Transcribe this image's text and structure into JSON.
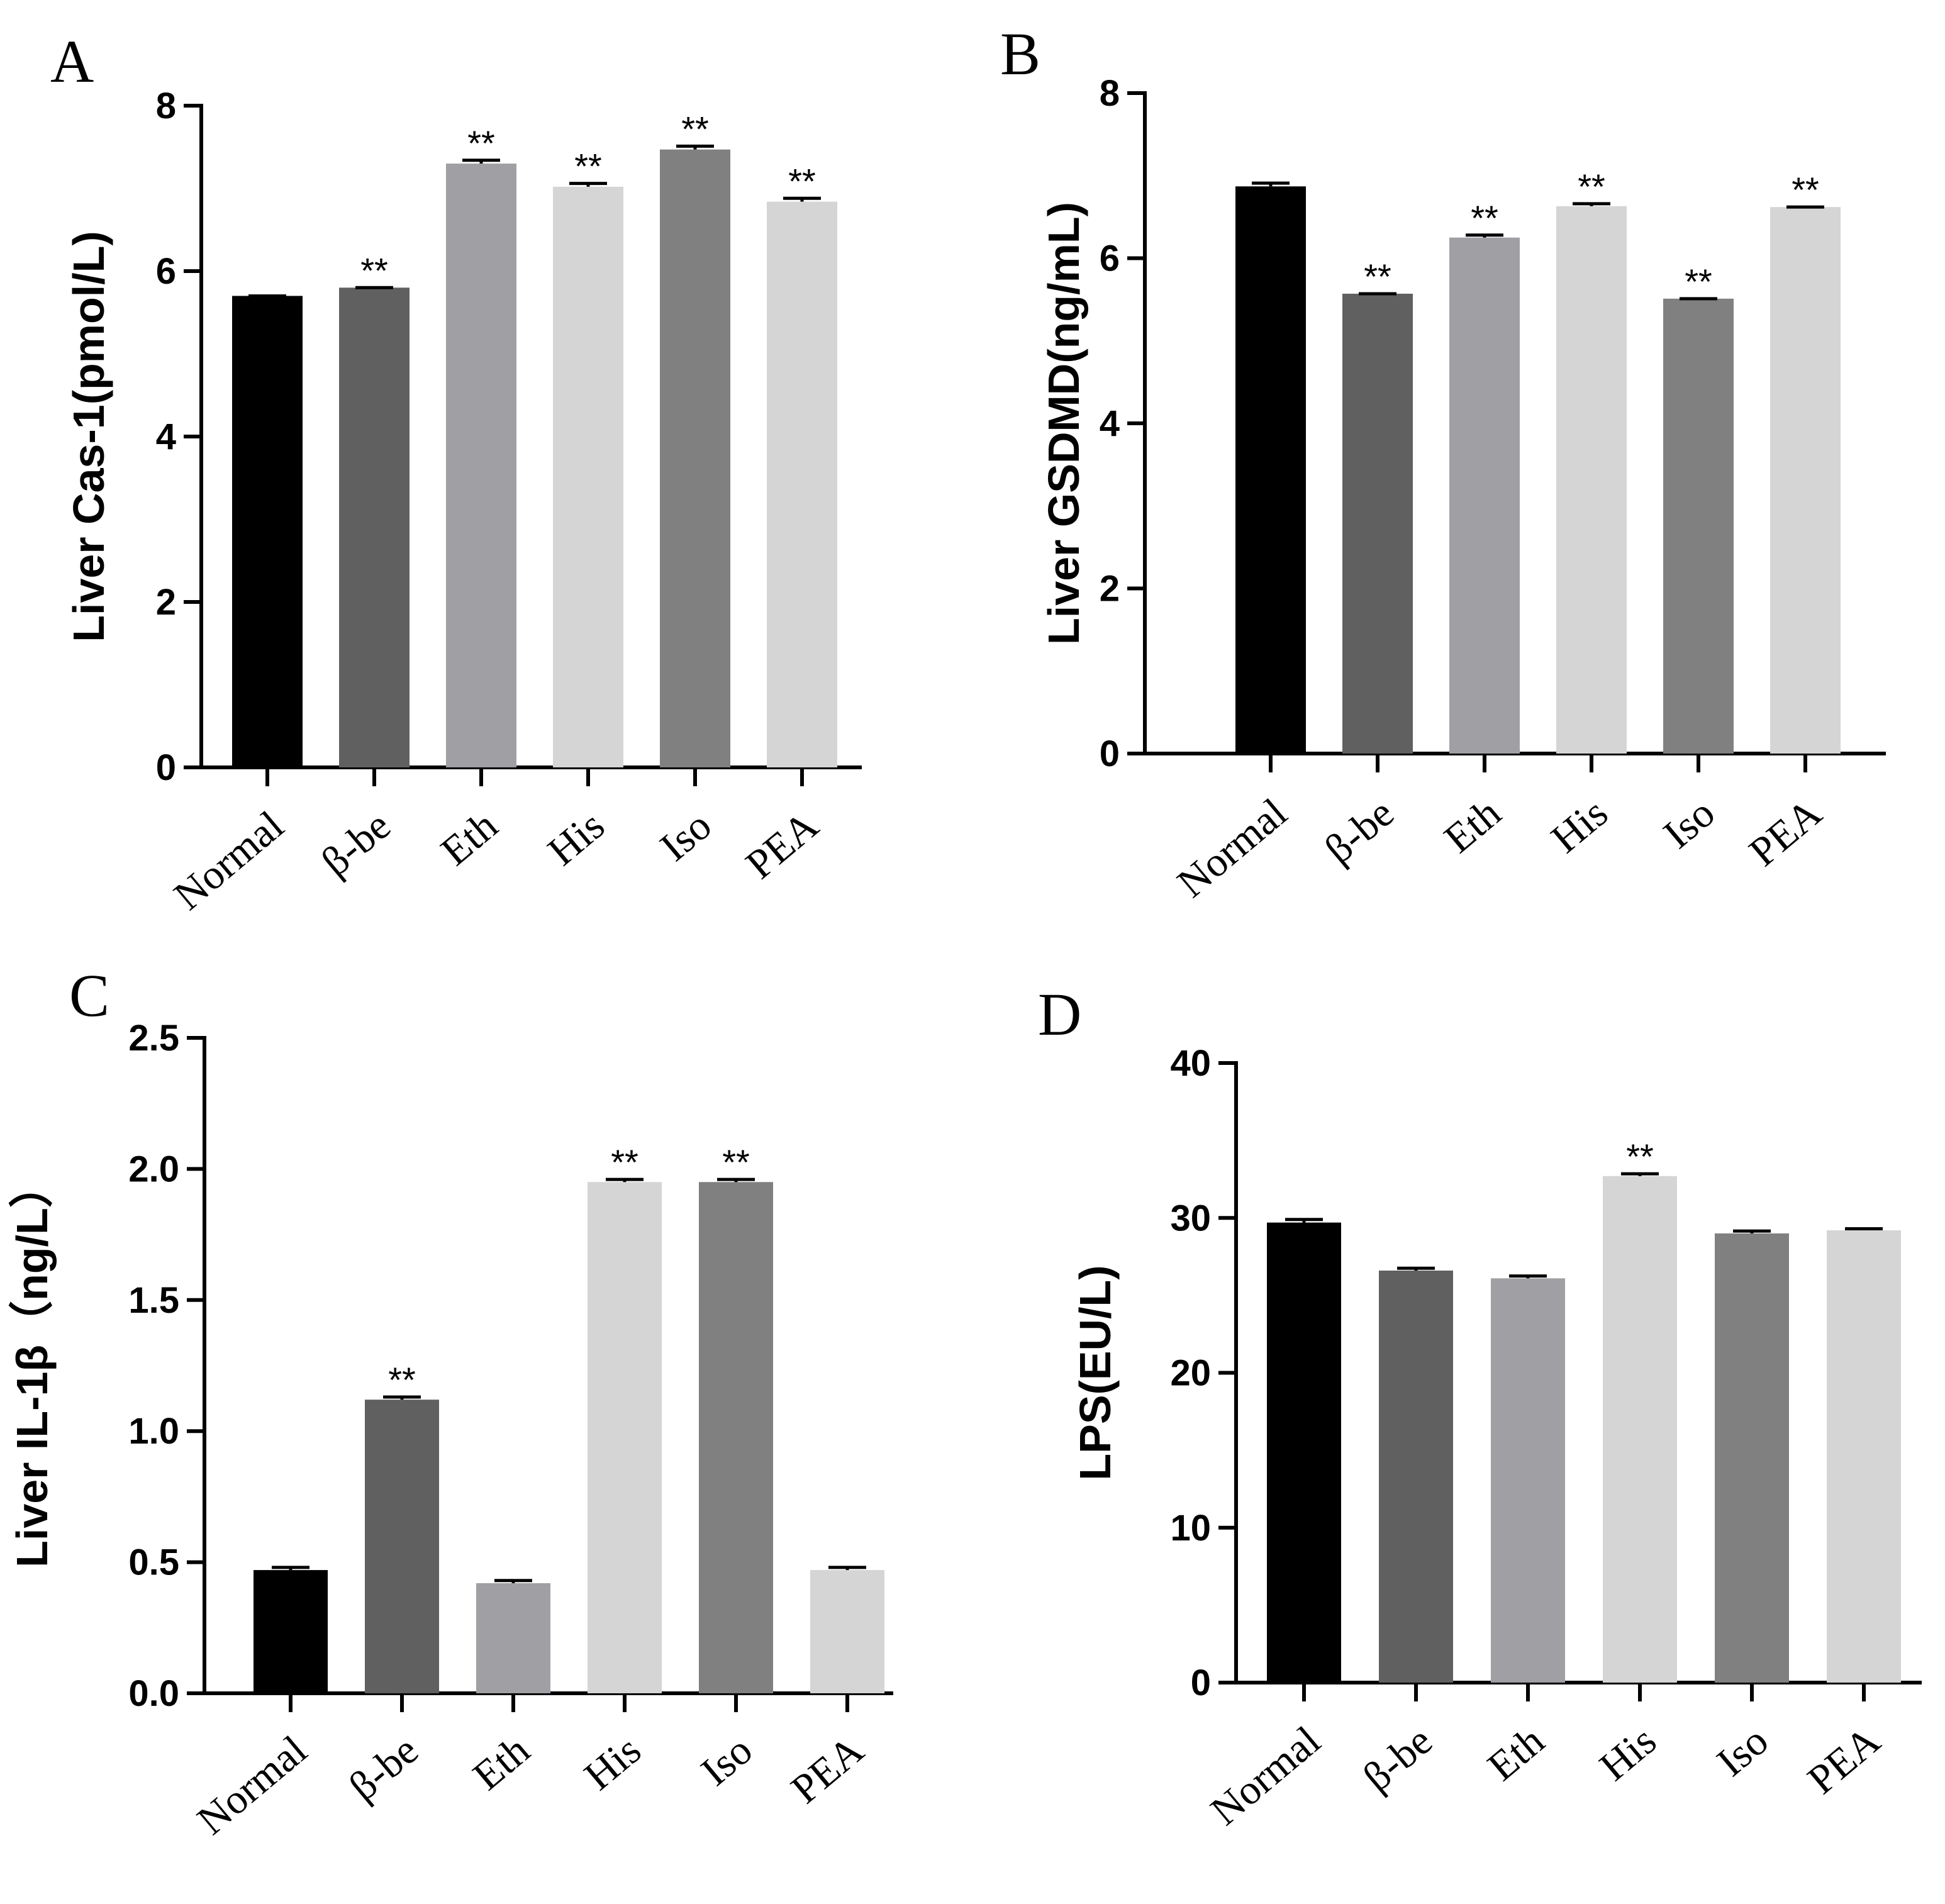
{
  "chart_data": [
    {
      "panel": "A",
      "type": "bar",
      "ylabel": "Liver Cas-1(pmol/L)",
      "ylim": [
        0,
        8
      ],
      "yticks": [
        "0",
        "2",
        "4",
        "6",
        "8"
      ],
      "categories": [
        "Normal",
        "β-be",
        "Eth",
        "His",
        "Iso",
        "PEA"
      ],
      "values": [
        5.7,
        5.8,
        7.3,
        7.02,
        7.47,
        6.84
      ],
      "errors": [
        0.0,
        0.0,
        0.04,
        0.04,
        0.04,
        0.04
      ],
      "significance": [
        "",
        "**",
        "**",
        "**",
        "**",
        "**"
      ]
    },
    {
      "panel": "B",
      "type": "bar",
      "ylabel": "Liver GSDMD(ng/mL)",
      "ylim": [
        0,
        8
      ],
      "yticks": [
        "0",
        "2",
        "4",
        "6",
        "8"
      ],
      "categories": [
        "Normal",
        "β-be",
        "Eth",
        "His",
        "Iso",
        "PEA"
      ],
      "values": [
        6.87,
        5.57,
        6.25,
        6.63,
        5.51,
        6.62
      ],
      "errors": [
        0.04,
        0.0,
        0.03,
        0.03,
        0.0,
        0.0
      ],
      "significance": [
        "",
        "**",
        "**",
        "**",
        "**",
        "**"
      ]
    },
    {
      "panel": "C",
      "type": "bar",
      "ylabel": "Liver IL-1β（ng/L）",
      "ylim": [
        0,
        2.5
      ],
      "yticks": [
        "0.0",
        "0.5",
        "1.0",
        "1.5",
        "2.0",
        "2.5"
      ],
      "categories": [
        "Normal",
        "β-be",
        "Eth",
        "His",
        "Iso",
        "PEA"
      ],
      "values": [
        0.47,
        1.12,
        0.42,
        1.95,
        1.95,
        0.47
      ],
      "errors": [
        0.01,
        0.01,
        0.01,
        0.01,
        0.01,
        0.01
      ],
      "significance": [
        "",
        "**",
        "",
        "**",
        "**",
        ""
      ]
    },
    {
      "panel": "D",
      "type": "bar",
      "ylabel": "LPS(EU/L)",
      "ylim": [
        0,
        40
      ],
      "yticks": [
        "0",
        "10",
        "20",
        "30",
        "40"
      ],
      "categories": [
        "Normal",
        "β-be",
        "Eth",
        "His",
        "Iso",
        "PEA"
      ],
      "values": [
        29.7,
        26.6,
        26.1,
        32.7,
        29.0,
        29.2
      ],
      "errors": [
        0.2,
        0.15,
        0.15,
        0.15,
        0.15,
        0.1
      ],
      "significance": [
        "",
        "",
        "",
        "**",
        "",
        ""
      ]
    }
  ],
  "bar_colors": [
    "#000000",
    "#606060",
    "#a0a0a4",
    "#d5d5d5",
    "#808080",
    "#d5d5d5"
  ]
}
